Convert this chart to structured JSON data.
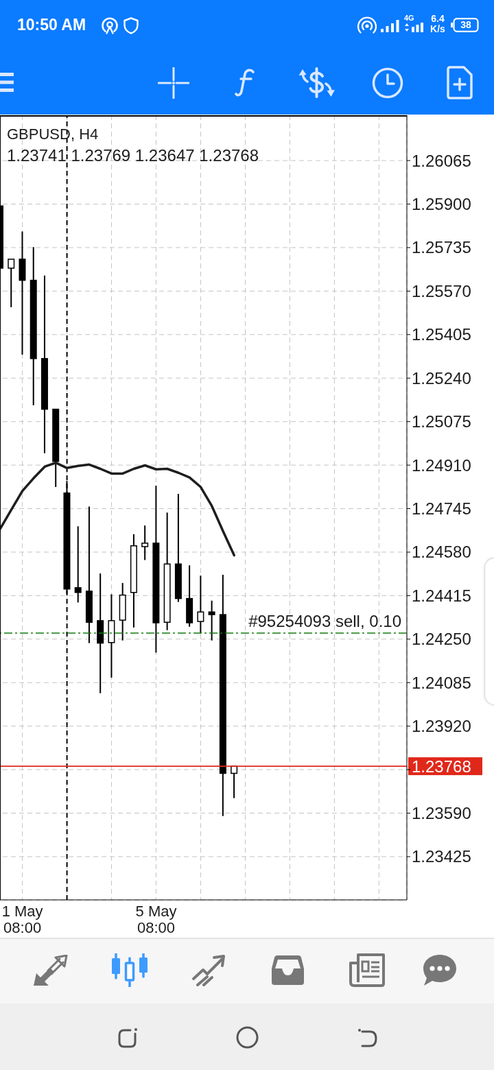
{
  "chart_data": {
    "type": "candlestick",
    "title": "GBPUSD, H4",
    "subtitle": "1.23741 1.23769 1.23647 1.23768",
    "annotations": [
      "10:50 AM",
      "4G",
      "6.4 K/s",
      "38"
    ],
    "categories": [
      null,
      null,
      "1 May 08:00",
      null,
      null,
      null,
      null,
      null,
      null,
      null,
      null,
      null,
      null,
      null,
      "5 May 08:00",
      null,
      null,
      null,
      null,
      null,
      null,
      null,
      null,
      null,
      null,
      null,
      null,
      null,
      null,
      null,
      null,
      null,
      null,
      null,
      null,
      null,
      null
    ],
    "ohlc": [
      [
        1.25893,
        1.25893,
        1.25657,
        1.25657
      ],
      [
        1.25657,
        1.25691,
        1.25509,
        1.25691
      ],
      [
        1.25691,
        1.25796,
        1.25329,
        1.25611
      ],
      [
        1.25611,
        1.25737,
        1.25137,
        1.25314
      ],
      [
        1.25314,
        1.25629,
        1.24955,
        1.25122
      ],
      [
        1.25122,
        1.25122,
        1.24827,
        1.24924
      ],
      [
        1.24804,
        1.2485,
        1.24422,
        1.2444
      ],
      [
        1.24445,
        1.24678,
        1.24389,
        1.24427
      ],
      [
        1.24432,
        1.24753,
        1.24235,
        1.24314
      ],
      [
        1.2432,
        1.24499,
        1.24045,
        1.24235
      ],
      [
        1.24237,
        1.2442,
        1.24104,
        1.2432
      ],
      [
        1.24322,
        1.24463,
        1.24245,
        1.24417
      ],
      [
        1.24427,
        1.24648,
        1.24294,
        1.24604
      ],
      [
        1.24601,
        1.24681,
        1.2455,
        1.24614
      ],
      [
        1.24614,
        1.24832,
        1.24199,
        1.24312
      ],
      [
        1.24314,
        1.2473,
        1.24284,
        1.24535
      ],
      [
        1.24535,
        1.24801,
        1.24391,
        1.24404
      ],
      [
        1.24404,
        1.2453,
        1.24297,
        1.24312
      ],
      [
        1.24317,
        1.24491,
        1.24273,
        1.24353
      ],
      [
        1.24353,
        1.24396,
        1.24245,
        1.24343
      ],
      [
        1.24343,
        1.24494,
        1.23579,
        1.23741
      ],
      [
        1.23741,
        1.23769,
        1.23647,
        1.23768
      ],
      null,
      null,
      null,
      null,
      null,
      null,
      null,
      null,
      null,
      null,
      null,
      null,
      null,
      null,
      null
    ],
    "color": "#000000",
    "colors": [
      "#000000",
      "#ffffff",
      "#000000",
      "#000000",
      "#000000",
      "#000000",
      "#000000",
      "#000000",
      "#000000",
      "#000000",
      "#ffffff",
      "#ffffff",
      "#ffffff",
      "#ffffff",
      "#000000",
      "#ffffff",
      "#000000",
      "#000000",
      "#ffffff",
      "#000000",
      "#000000",
      "#ffffff",
      null,
      null,
      null,
      null,
      null,
      null,
      null,
      null,
      null,
      null,
      null,
      null,
      null,
      null,
      null
    ],
    "series": [
      {
        "type": "line",
        "color": "#1e1e1e",
        "values": [
          1.24668,
          1.2474,
          1.24812,
          1.2486,
          1.24904,
          1.24919,
          1.24899,
          1.24907,
          1.24912,
          1.24896,
          1.24878,
          1.24878,
          1.24896,
          1.24909,
          1.24894,
          1.24896,
          1.24881,
          1.24863,
          1.24827,
          1.24755,
          1.2466,
          1.24568,
          null,
          null,
          null,
          null,
          null,
          null,
          null,
          null,
          null,
          null,
          null,
          null,
          null,
          null,
          null
        ]
      }
    ],
    "ylim": [
      1.23261,
      1.26237
    ],
    "yticks": [
      1.26065,
      {
        "value": 1.259,
        "label": "1.25900"
      },
      1.25735,
      {
        "value": 1.2557,
        "label": "1.25570"
      },
      1.25405,
      {
        "value": 1.2524,
        "label": "1.25240"
      },
      1.25075,
      {
        "value": 1.2491,
        "label": "1.24910"
      },
      1.24745,
      {
        "value": 1.2458,
        "label": "1.24580"
      },
      1.24415,
      {
        "value": 1.2425,
        "label": "1.24250"
      },
      1.24085,
      {
        "value": 1.2392,
        "label": "1.23920"
      },
      {
        "value": 1.23755,
        "label": null
      },
      {
        "value": 1.2359,
        "label": "1.23590"
      },
      1.23425
    ],
    "ref_lines": [
      {
        "axis": "y",
        "value": 1.24273,
        "label": "#95254093 sell, 0.10",
        "color": "#107c10",
        "line_style": "dashdot"
      },
      {
        "axis": "y",
        "value": 1.23768,
        "label": "1.23768",
        "color": "#e0281a"
      }
    ],
    "grid": true
  }
}
